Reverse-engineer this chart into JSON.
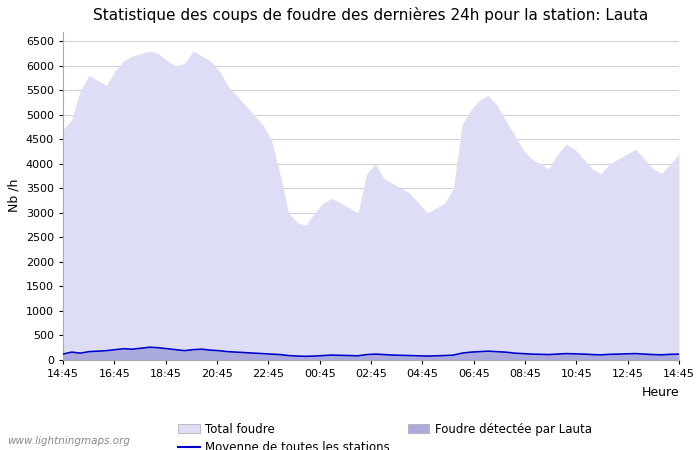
{
  "title": "Statistique des coups de foudre des dernières 24h pour la station: Lauta",
  "ylabel": "Nb /h",
  "xlabel": "Heure",
  "watermark": "www.lightningmaps.org",
  "ylim": [
    0,
    6700
  ],
  "yticks": [
    0,
    500,
    1000,
    1500,
    2000,
    2500,
    3000,
    3500,
    4000,
    4500,
    5000,
    5500,
    6000,
    6500
  ],
  "xtick_labels": [
    "14:45",
    "16:45",
    "18:45",
    "20:45",
    "22:45",
    "00:45",
    "02:45",
    "04:45",
    "06:45",
    "08:45",
    "10:45",
    "12:45",
    "14:45"
  ],
  "bg_color": "#ffffff",
  "plot_bg_color": "#ffffff",
  "grid_color": "#ccccdd",
  "fill_total_color": "#ddddf5",
  "fill_lauta_color": "#aaaadd",
  "line_color": "#0000cc",
  "legend_entries": [
    "Total foudre",
    "Moyenne de toutes les stations",
    "Foudre détectée par Lauta"
  ],
  "total_foudre": [
    4700,
    4900,
    5500,
    5800,
    5700,
    5600,
    5900,
    6100,
    6200,
    6250,
    6300,
    6250,
    6100,
    6000,
    6050,
    6300,
    6200,
    6100,
    5900,
    5600,
    5400,
    5200,
    5000,
    4800,
    4500,
    3800,
    3000,
    2800,
    2750,
    3000,
    3200,
    3300,
    3200,
    3100,
    3000,
    3800,
    4000,
    3700,
    3600,
    3500,
    3400,
    3200,
    3000,
    3100,
    3200,
    3500,
    4800,
    5100,
    5300,
    5400,
    5200,
    4900,
    4600,
    4300,
    4100,
    4000,
    3900,
    4200,
    4400,
    4300,
    4100,
    3900,
    3800,
    4000,
    4100,
    4200,
    4300,
    4100,
    3900,
    3800,
    4000,
    4200
  ],
  "lauta_foudre": [
    100,
    150,
    130,
    160,
    170,
    180,
    200,
    220,
    210,
    230,
    250,
    240,
    220,
    200,
    180,
    200,
    210,
    190,
    180,
    160,
    150,
    140,
    130,
    120,
    110,
    100,
    80,
    70,
    65,
    70,
    80,
    90,
    85,
    80,
    75,
    100,
    110,
    100,
    90,
    85,
    80,
    75,
    70,
    75,
    80,
    90,
    130,
    150,
    160,
    170,
    160,
    150,
    130,
    120,
    110,
    105,
    100,
    110,
    120,
    115,
    110,
    100,
    95,
    105,
    110,
    115,
    120,
    110,
    100,
    95,
    105,
    110
  ],
  "moyenne": [
    120,
    160,
    140,
    170,
    180,
    190,
    210,
    230,
    220,
    240,
    260,
    250,
    230,
    210,
    190,
    210,
    220,
    200,
    190,
    170,
    160,
    150,
    140,
    130,
    120,
    110,
    90,
    80,
    75,
    80,
    90,
    100,
    95,
    90,
    85,
    110,
    120,
    110,
    100,
    95,
    90,
    85,
    80,
    85,
    90,
    100,
    140,
    160,
    170,
    180,
    170,
    160,
    140,
    130,
    120,
    115,
    110,
    120,
    130,
    125,
    120,
    110,
    105,
    115,
    120,
    125,
    130,
    120,
    110,
    105,
    115,
    120
  ]
}
